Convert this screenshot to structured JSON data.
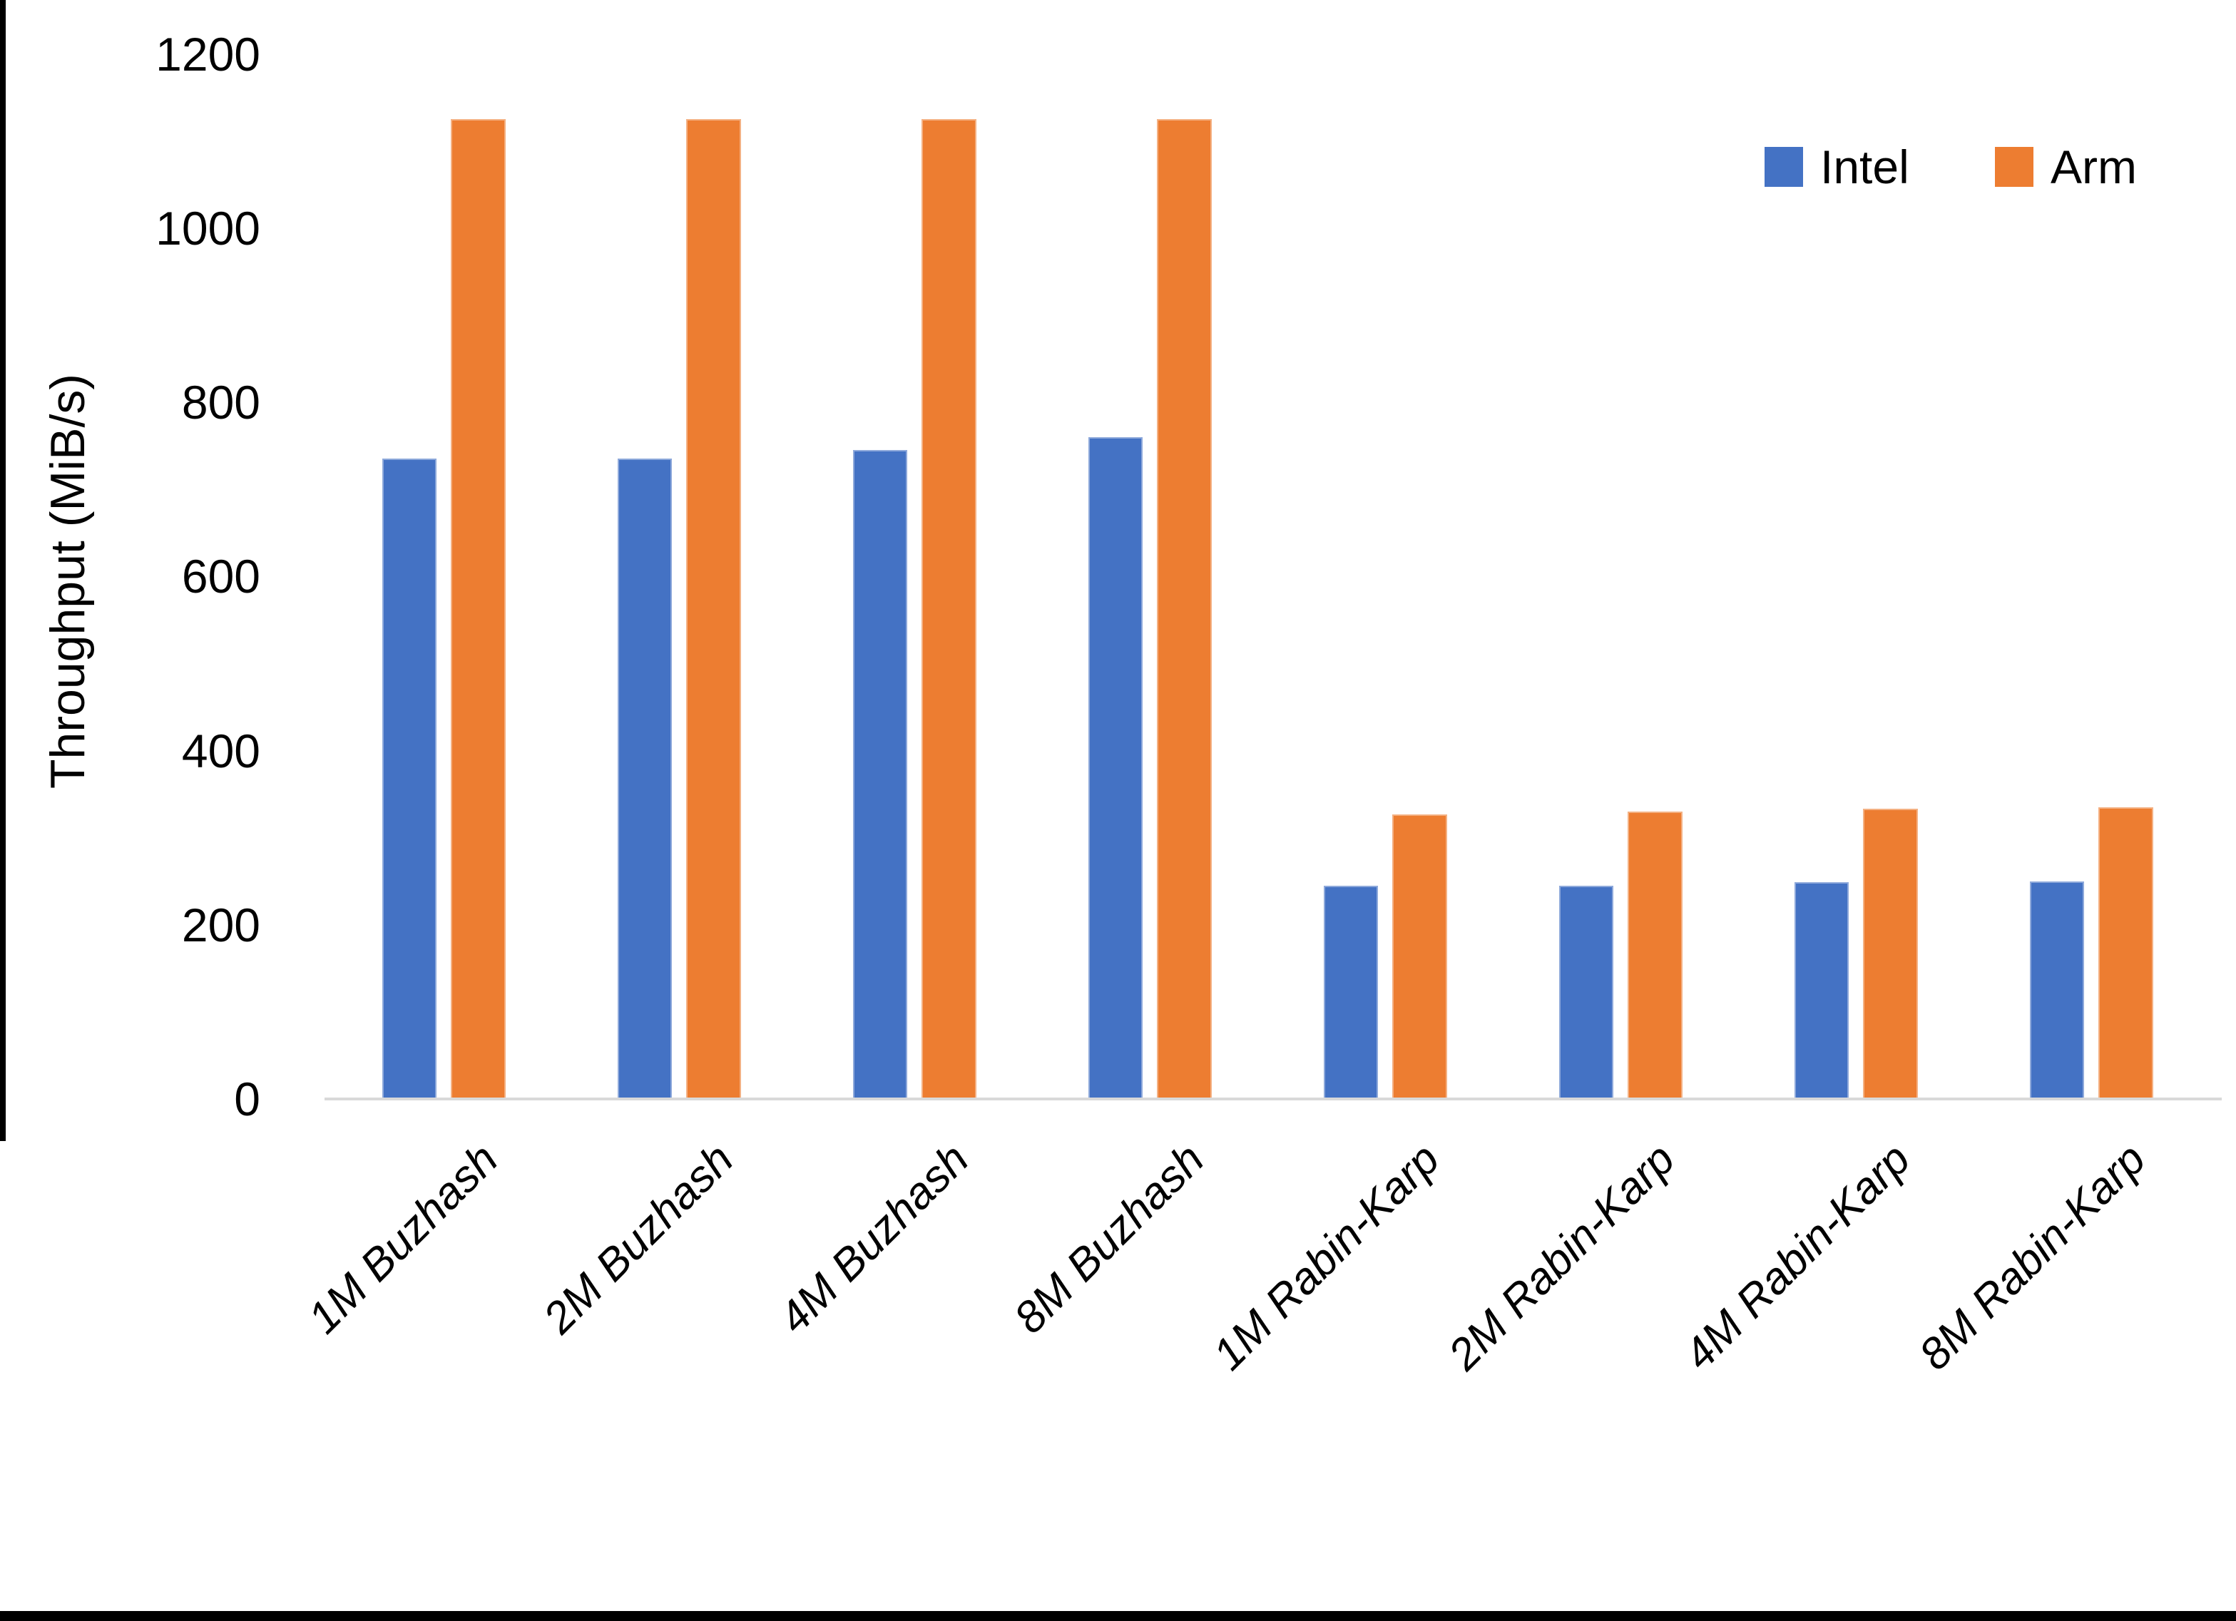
{
  "chart_data": {
    "type": "bar",
    "title": "",
    "xlabel": "",
    "ylabel": "Throughput (MiB/s)",
    "categories": [
      "1M Buzhash",
      "2M Buzhash",
      "4M Buzhash",
      "8M Buzhash",
      "1M Rabin-Karp",
      "2M Rabin-Karp",
      "4M Rabin-Karp",
      "8M Rabin-Karp"
    ],
    "series": [
      {
        "name": "Intel",
        "color": "#4472C4",
        "values": [
          735,
          735,
          745,
          760,
          245,
          245,
          249,
          250
        ]
      },
      {
        "name": "Arm",
        "color": "#ED7D31",
        "values": [
          1125,
          1125,
          1125,
          1125,
          327,
          330,
          333,
          335
        ]
      }
    ],
    "ylim": [
      0,
      1200
    ],
    "yticks": [
      0,
      200,
      400,
      600,
      800,
      1000,
      1200
    ],
    "grid": false,
    "legend_position": "top-right",
    "axis_line_color": "#D9D9D9",
    "category_label_style": "italic, rotated 45deg"
  }
}
